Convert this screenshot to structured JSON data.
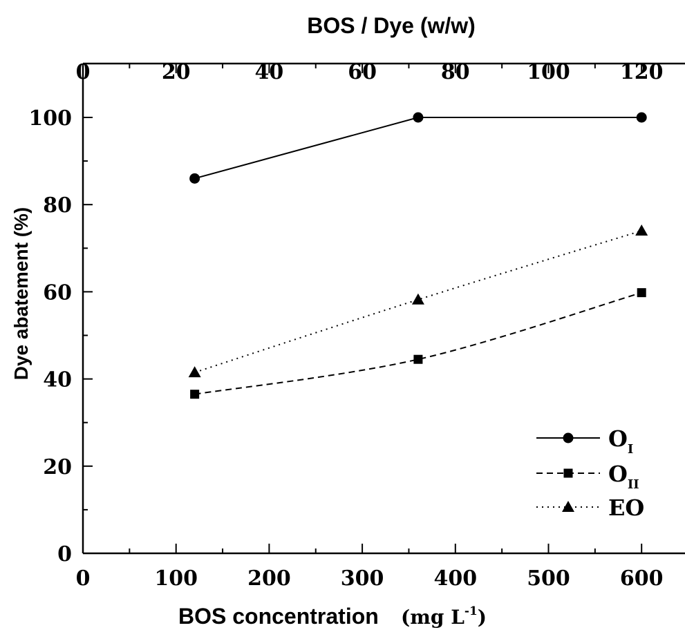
{
  "chart_data": {
    "type": "line",
    "xlabel": "BOS concentration",
    "xlabel_unit": {
      "base": "(mg L",
      "sup": "-1",
      "close": ")"
    },
    "x2label": "BOS / Dye  (w/w)",
    "ylabel": "Dye abatement (%)",
    "xlim": [
      0,
      650
    ],
    "x2lim": [
      0,
      130
    ],
    "ylim": [
      0,
      100
    ],
    "x_ticks": [
      0,
      100,
      200,
      300,
      400,
      500,
      600
    ],
    "x2_ticks": [
      0,
      20,
      40,
      60,
      80,
      100,
      120
    ],
    "y_ticks": [
      0,
      20,
      40,
      60,
      80,
      100
    ],
    "x_tick_labels": [
      "0",
      "100",
      "200",
      "300",
      "400",
      "500",
      "600"
    ],
    "x2_tick_labels": [
      "0",
      "20",
      "40",
      "60",
      "80",
      "100",
      "120"
    ],
    "y_tick_labels": [
      "0",
      "20",
      "40",
      "60",
      "80",
      "100"
    ],
    "x": [
      120,
      360,
      600
    ],
    "series": [
      {
        "name": "O",
        "name_sub": "I",
        "values": [
          86,
          100,
          100
        ],
        "marker": "circle",
        "line": "solid",
        "color": "#000000"
      },
      {
        "name": "O",
        "name_sub": "II",
        "values": [
          36.5,
          44.5,
          59.8
        ],
        "marker": "square",
        "line": "dashed",
        "color": "#000000"
      },
      {
        "name": "EO",
        "name_sub": "",
        "values": [
          41.5,
          58.2,
          74
        ],
        "marker": "triangle",
        "line": "dotted",
        "color": "#000000"
      }
    ],
    "grid": false,
    "legend": "bottom-right"
  }
}
